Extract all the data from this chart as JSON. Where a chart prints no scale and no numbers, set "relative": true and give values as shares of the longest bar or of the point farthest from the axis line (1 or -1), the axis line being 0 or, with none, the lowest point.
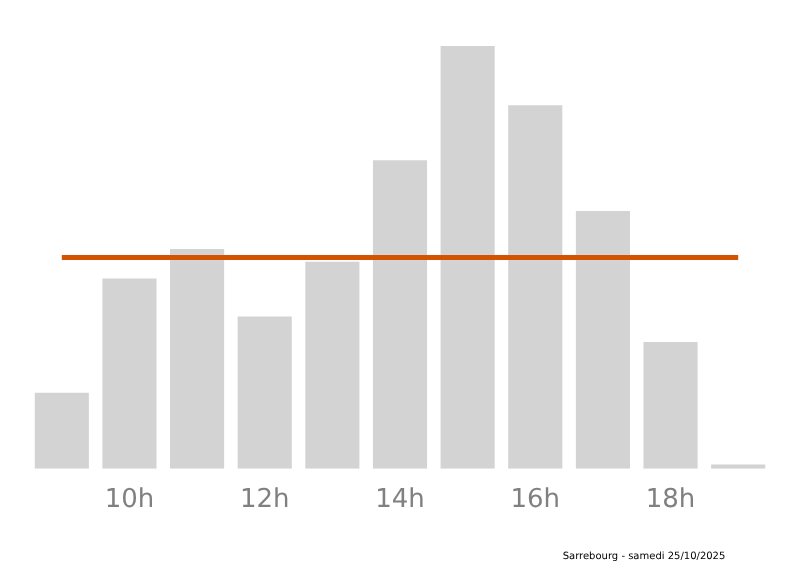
{
  "chart_data": {
    "type": "bar",
    "relative": true,
    "categories": [
      null,
      "10h",
      null,
      "12h",
      null,
      "14h",
      null,
      "16h",
      null,
      "18h",
      null
    ],
    "values": [
      0.18,
      0.45,
      0.52,
      0.36,
      0.49,
      0.73,
      1,
      0.86,
      0.61,
      0.3,
      0.01
    ],
    "color": "#d3d3d3",
    "ref_lines": [
      {
        "axis": "y",
        "value": 0.5,
        "color": "#d35400"
      }
    ],
    "annotations": [
      "Sarrebourg - samedi 25/10/2025"
    ],
    "grid": false,
    "legend": false
  }
}
